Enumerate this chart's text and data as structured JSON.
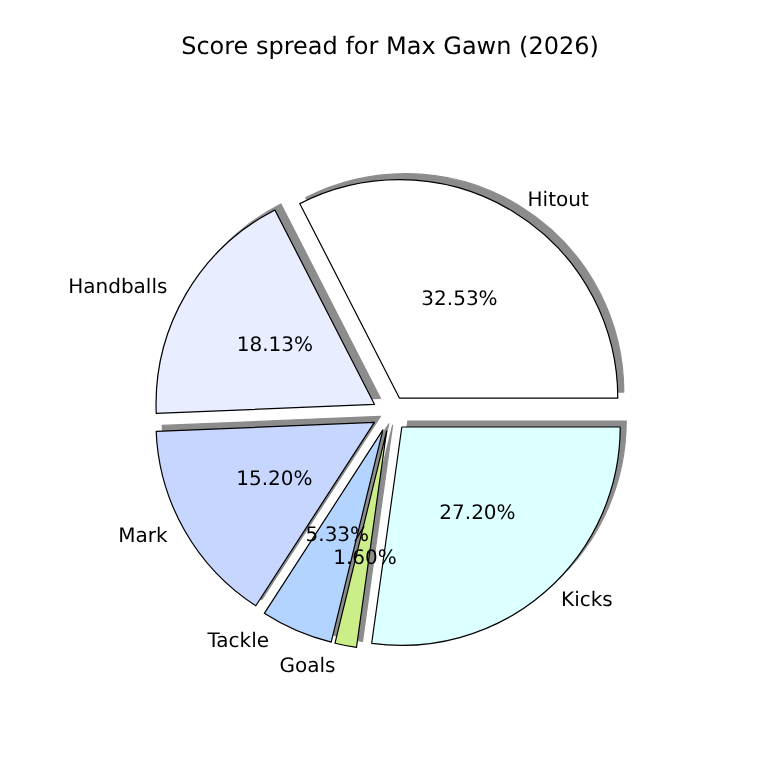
{
  "chart_data": {
    "type": "pie",
    "title": "Score spread for Max Gawn (2026)",
    "categories": [
      "Hitout",
      "Handballs",
      "Mark",
      "Tackle",
      "Goals",
      "Kicks"
    ],
    "values": [
      32.53,
      18.13,
      15.2,
      5.33,
      1.6,
      27.2
    ],
    "value_labels": [
      "32.53%",
      "18.13%",
      "15.20%",
      "5.33%",
      "1.60%",
      "27.20%"
    ],
    "colors": [
      "#ffffff",
      "#e8eeff",
      "#c6d6ff",
      "#b3d4ff",
      "#ccee88",
      "#dcffff"
    ],
    "legend": false
  }
}
